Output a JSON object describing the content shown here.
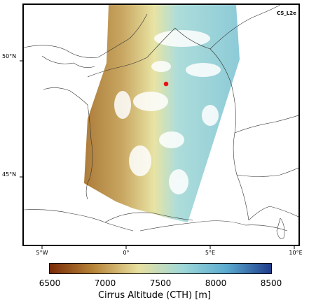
{
  "map": {
    "product": "CS_L2e",
    "lon_ticks": [
      "5°W",
      "0°",
      "5°E",
      "10°E"
    ],
    "lat_ticks": [
      "50°N",
      "45°N"
    ],
    "marker_color": "#e8141b",
    "coast_color": "#333333"
  },
  "colorbar": {
    "title": "Cirrus Altitude (CTH) [m]",
    "ticks": [
      "6500",
      "7000",
      "7500",
      "8000",
      "8500"
    ],
    "range": [
      6500,
      8500
    ],
    "colors": [
      "#7a2a05",
      "#b8863a",
      "#e8e0a0",
      "#9fd8d8",
      "#5aaad0",
      "#1f3c8a"
    ]
  }
}
